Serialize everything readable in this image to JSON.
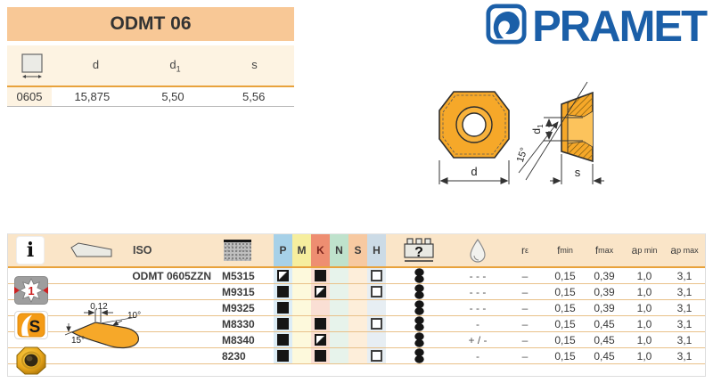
{
  "header": {
    "title": "ODMT 06"
  },
  "brand": {
    "name": "PRAMET"
  },
  "spec_table": {
    "columns": [
      {
        "base": "d",
        "sub": ""
      },
      {
        "base": "d",
        "sub": "1"
      },
      {
        "base": "s",
        "sub": ""
      }
    ],
    "row": {
      "size": "0605",
      "values": [
        "15,875",
        "5,50",
        "5,56"
      ]
    }
  },
  "drawing": {
    "front_dim": "d",
    "side_dim": "s",
    "hole_dim_base": "d",
    "hole_dim_sub": "1",
    "angle": "15°"
  },
  "catalog": {
    "iso_label": "ISO",
    "designation": "ODMT 0605ZZN",
    "band_columns": [
      {
        "letter": "P",
        "header_color": "#a7d1e8",
        "row_color": "#ddedf6",
        "letter_color": "#3c3c3c"
      },
      {
        "letter": "M",
        "header_color": "#f6ee9e",
        "row_color": "#fdf9dc",
        "letter_color": "#3c3c3c"
      },
      {
        "letter": "K",
        "header_color": "#ee8e71",
        "row_color": "#fadfd4",
        "letter_color": "#7b241c"
      },
      {
        "letter": "N",
        "header_color": "#bfe2cc",
        "row_color": "#e7f3eb",
        "letter_color": "#3c3c3c"
      },
      {
        "letter": "S",
        "header_color": "#f7c9a1",
        "row_color": "#fdeeda",
        "letter_color": "#3c3c3c"
      },
      {
        "letter": "H",
        "header_color": "#ccdbe6",
        "row_color": "#e7eef3",
        "letter_color": "#3c3c3c"
      }
    ],
    "head": {
      "question_mark": "?",
      "r_base": "r",
      "r_sub": "ε",
      "f_base": "f",
      "fmin_sub": "min",
      "fmax_sub": "max",
      "a_base": "a",
      "apmin_sub": "p min",
      "apmax_sub": "p max"
    },
    "icons": {
      "info": "i",
      "first_choice": "1",
      "wiper": "S"
    },
    "edge_profile": {
      "land": "0,12",
      "top_angle": "10°",
      "side_angle": "15°"
    },
    "rows": [
      {
        "grade": "M5315",
        "P": "half",
        "M": "none",
        "K": "full",
        "N": "none",
        "S": "none",
        "H": "outline",
        "coolant": "- - -",
        "re": "–",
        "fmin": "0,15",
        "fmax": "0,39",
        "apmin": "1,0",
        "apmax": "3,1"
      },
      {
        "grade": "M9315",
        "P": "full",
        "M": "none",
        "K": "half",
        "N": "none",
        "S": "none",
        "H": "outline",
        "coolant": "- - -",
        "re": "–",
        "fmin": "0,15",
        "fmax": "0,39",
        "apmin": "1,0",
        "apmax": "3,1"
      },
      {
        "grade": "M9325",
        "P": "full",
        "M": "none",
        "K": "none",
        "N": "none",
        "S": "none",
        "H": "none",
        "coolant": "- - -",
        "re": "–",
        "fmin": "0,15",
        "fmax": "0,39",
        "apmin": "1,0",
        "apmax": "3,1"
      },
      {
        "grade": "M8330",
        "P": "full",
        "M": "none",
        "K": "full",
        "N": "none",
        "S": "none",
        "H": "outline",
        "coolant": "-",
        "re": "–",
        "fmin": "0,15",
        "fmax": "0,45",
        "apmin": "1,0",
        "apmax": "3,1"
      },
      {
        "grade": "M8340",
        "P": "full",
        "M": "none",
        "K": "half",
        "N": "none",
        "S": "none",
        "H": "none",
        "coolant": "+ / -",
        "re": "–",
        "fmin": "0,15",
        "fmax": "0,45",
        "apmin": "1,0",
        "apmax": "3,1"
      },
      {
        "grade": "8230",
        "P": "full",
        "M": "none",
        "K": "full",
        "N": "none",
        "S": "none",
        "H": "outline",
        "coolant": "-",
        "re": "–",
        "fmin": "0,15",
        "fmax": "0,45",
        "apmin": "1,0",
        "apmax": "3,1"
      }
    ]
  },
  "colors": {
    "accent_line": "#e8a23c",
    "title_bg": "#f8c896",
    "cream_bg": "#fdf3e2",
    "panel_header_bg": "#fae5c8",
    "row_line": "#e9c189",
    "insert_fill": "#f6a829",
    "logo_blue": "#1b5fa8"
  }
}
